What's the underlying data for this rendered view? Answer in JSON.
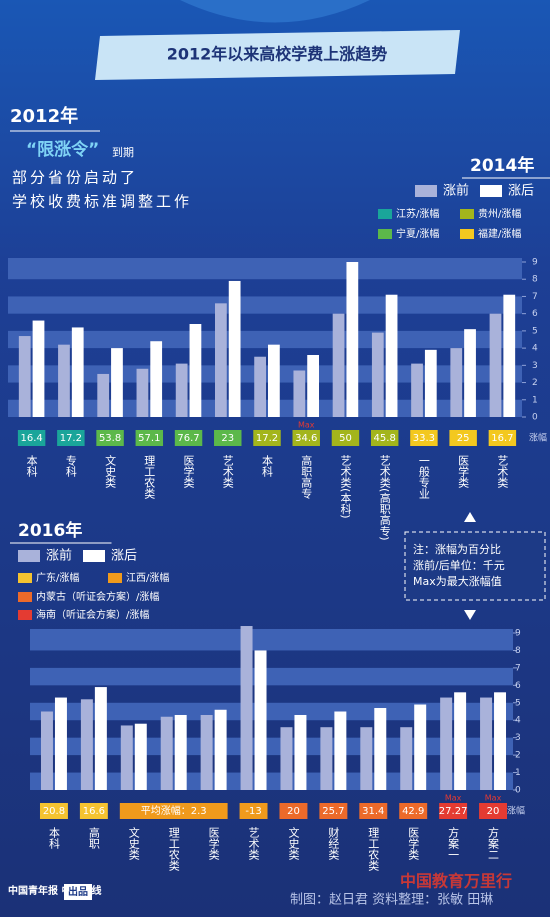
{
  "header": {
    "title": "2012年以来高校学费上涨趋势",
    "year": "2012年",
    "quote": "“限涨令”",
    "quote_suffix": "到期",
    "line1": "部分省份启动了",
    "line2": "学校收费标准调整工作"
  },
  "note": [
    "注：涨幅为百分比",
    "涨前/后单位：千元",
    "Max为最大涨幅值"
  ],
  "footer": {
    "publisher": "中国青年报 中青在线",
    "badge": "出品",
    "credits": "制图：赵日君  资料整理：张敏 田琳",
    "watermark": "中国教育万里行"
  },
  "chart_data": [
    {
      "type": "bar",
      "title": "2014年",
      "increase_unit": "涨幅",
      "max_label": "Max",
      "max_at": [
        7
      ],
      "categories": [
        "本科",
        "专科",
        "文史类",
        "理工农类",
        "医学类",
        "艺术类",
        "本科",
        "高职高专",
        "艺术类(本科)",
        "艺术类(高职高专)",
        "一般专业",
        "医学类",
        "艺术类"
      ],
      "series": [
        {
          "name": "涨前",
          "color": "#a9b2da",
          "values": [
            4.7,
            4.2,
            2.5,
            2.8,
            3.1,
            6.6,
            3.5,
            2.7,
            6.0,
            4.9,
            3.1,
            4.0,
            6.0
          ]
        },
        {
          "name": "涨后",
          "color": "#ffffff",
          "values": [
            5.6,
            5.2,
            4.0,
            4.4,
            5.4,
            7.9,
            4.2,
            3.6,
            9.0,
            7.1,
            3.9,
            5.1,
            7.1
          ]
        }
      ],
      "provinces": [
        {
          "name": "江苏/涨幅",
          "color": "#1aa59a"
        },
        {
          "name": "贵州/涨幅",
          "color": "#a3b51c"
        },
        {
          "name": "宁夏/涨幅",
          "color": "#5cb84a"
        },
        {
          "name": "福建/涨幅",
          "color": "#f3c81f"
        }
      ],
      "increases": [
        16.4,
        17.2,
        53.8,
        57.1,
        76.7,
        23,
        17.2,
        34.6,
        50,
        45.8,
        33.3,
        25,
        16.7
      ],
      "increase_colors": [
        "#1aa59a",
        "#1aa59a",
        "#5cb84a",
        "#5cb84a",
        "#5cb84a",
        "#5cb84a",
        "#a3b51c",
        "#a3b51c",
        "#a3b51c",
        "#a3b51c",
        "#f3c81f",
        "#f3c81f",
        "#f3c81f"
      ],
      "ylim": [
        0,
        9
      ],
      "yticks": [
        0,
        1,
        2,
        3,
        4,
        5,
        6,
        7,
        8,
        9
      ]
    },
    {
      "type": "bar",
      "title": "2016年",
      "increase_unit": "涨幅",
      "max_label": "Max",
      "max_at": [
        10,
        11
      ],
      "categories": [
        "本科",
        "高职",
        "文史类",
        "理工农类",
        "医学类",
        "艺术类",
        "文史类",
        "财经类",
        "理工农类",
        "医学类",
        "方案一",
        "方案二"
      ],
      "series": [
        {
          "name": "涨前",
          "color": "#a9b2da",
          "values": [
            4.5,
            5.2,
            3.7,
            4.2,
            4.3,
            9.4,
            3.6,
            3.6,
            3.6,
            3.6,
            5.3,
            5.3
          ]
        },
        {
          "name": "涨后",
          "color": "#ffffff",
          "values": [
            5.3,
            5.9,
            3.8,
            4.3,
            4.6,
            8.0,
            4.3,
            4.5,
            4.7,
            4.9,
            5.6,
            5.6
          ]
        }
      ],
      "provinces": [
        {
          "name": "广东/涨幅",
          "color": "#f5c330"
        },
        {
          "name": "江西/涨幅",
          "color": "#f09a1c"
        },
        {
          "name": "内蒙古（听证会方案）/涨幅",
          "color": "#ec6a2a"
        },
        {
          "name": "海南（听证会方案）/涨幅",
          "color": "#e43b32"
        }
      ],
      "increases": [
        20.8,
        16.6,
        2.3,
        null,
        null,
        -13,
        20,
        25.7,
        31.4,
        42.9,
        27.27,
        20
      ],
      "increase_labels": [
        "20.8",
        "16.6",
        "平均涨幅：2.3",
        null,
        null,
        "-13",
        "20",
        "25.7",
        "31.4",
        "42.9",
        "27.27",
        "20"
      ],
      "increase_colors": [
        "#f5c330",
        "#f5c330",
        "#f09a1c",
        null,
        null,
        "#f09a1c",
        "#ec6a2a",
        "#ec6a2a",
        "#ec6a2a",
        "#ec6a2a",
        "#e43b32",
        "#e43b32"
      ],
      "ylim": [
        0,
        9
      ],
      "yticks": [
        0,
        1,
        2,
        3,
        4,
        5,
        6,
        7,
        8,
        9
      ]
    }
  ]
}
